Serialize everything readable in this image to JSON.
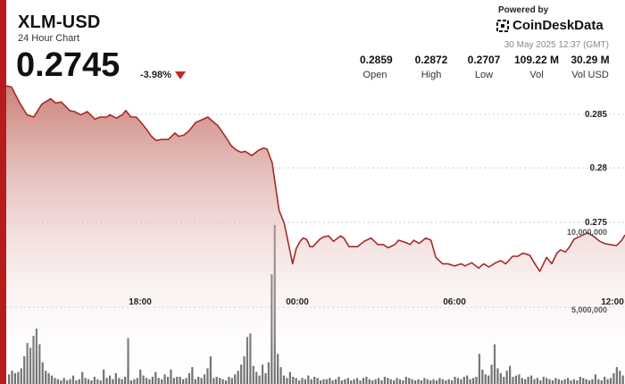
{
  "header": {
    "symbol": "XLM-USD",
    "subtitle": "24 Hour Chart",
    "price": "0.2745",
    "change": "-3.98%"
  },
  "branding": {
    "powered_by": "Powered by",
    "logo_text": "CoinDeskData",
    "timestamp": "30 May 2025 12:37 (GMT)"
  },
  "stats": [
    {
      "value": "0.2859",
      "label": "Open"
    },
    {
      "value": "0.2872",
      "label": "High"
    },
    {
      "value": "0.2707",
      "label": "Low"
    },
    {
      "value": "109.22 M",
      "label": "Vol"
    },
    {
      "value": "30.29 M",
      "label": "Vol USD"
    }
  ],
  "colors": {
    "accent": "#b71c1c",
    "price_line": "#a52a2a",
    "area_top": "#c97a72",
    "volume_bar": "#6f6f6f",
    "down_arrow": "#c62828"
  },
  "chart_data": {
    "type": "area",
    "price_series": {
      "x_hours": [
        0,
        0.16,
        0.42,
        0.64,
        0.85,
        1.1,
        1.37,
        1.53,
        1.7,
        1.96,
        2.11,
        2.3,
        2.5,
        2.74,
        2.9,
        3.1,
        3.2,
        3.4,
        3.58,
        3.69,
        3.85,
        4.01,
        4.21,
        4.32,
        4.48,
        4.63,
        4.79,
        5.0,
        5.21,
        5.32,
        5.48,
        5.64,
        5.85,
        6.01,
        6.22,
        6.33,
        6.53,
        6.74,
        6.95,
        7.11,
        7.26,
        7.37,
        7.58,
        7.79,
        7.95,
        8.05,
        8.21,
        8.42,
        8.58,
        8.84,
        8.95,
        9.05,
        9.16,
        9.26,
        9.32,
        9.37,
        9.47,
        9.68,
        9.79,
        9.95,
        10.1,
        10.32,
        10.42,
        10.58,
        10.84,
        11.05,
        11.26,
        11.47,
        11.63,
        11.79,
        12.0,
        12.11,
        12.32,
        12.47,
        12.58,
        12.74,
        12.95,
        13.11,
        13.26,
        13.47,
        13.63,
        13.84,
        14.05,
        14.16,
        14.37,
        14.58,
        14.74,
        14.9,
        15.11,
        15.26,
        15.42,
        15.63,
        15.79,
        15.95,
        16.16,
        16.32,
        16.47,
        16.68,
        16.84,
        17.0,
        17.11,
        17.26,
        17.37,
        17.53,
        17.74,
        17.95,
        18.16,
        18.32,
        18.47,
        18.63,
        18.84,
        19.0,
        19.1
      ],
      "values": [
        0.2884,
        0.2883,
        0.2868,
        0.2857,
        0.2855,
        0.2867,
        0.2872,
        0.2868,
        0.2869,
        0.2861,
        0.286,
        0.2857,
        0.286,
        0.2853,
        0.2855,
        0.2855,
        0.2857,
        0.2854,
        0.2857,
        0.2861,
        0.2855,
        0.2855,
        0.2848,
        0.2844,
        0.2837,
        0.2833,
        0.2834,
        0.2834,
        0.284,
        0.2837,
        0.2838,
        0.2842,
        0.285,
        0.2852,
        0.2855,
        0.2852,
        0.2847,
        0.2838,
        0.2828,
        0.2824,
        0.2822,
        0.2823,
        0.2819,
        0.2824,
        0.2826,
        0.2825,
        0.2812,
        0.2768,
        0.2756,
        0.2718,
        0.2732,
        0.2738,
        0.2742,
        0.2741,
        0.2738,
        0.2734,
        0.2734,
        0.2741,
        0.2743,
        0.2744,
        0.2739,
        0.2744,
        0.2742,
        0.2734,
        0.2734,
        0.2739,
        0.2742,
        0.2736,
        0.2736,
        0.2733,
        0.2736,
        0.274,
        0.2738,
        0.2736,
        0.274,
        0.2737,
        0.2742,
        0.274,
        0.2724,
        0.2718,
        0.2718,
        0.2716,
        0.2718,
        0.2716,
        0.2719,
        0.2714,
        0.2718,
        0.2715,
        0.2719,
        0.2721,
        0.2718,
        0.2725,
        0.2725,
        0.2728,
        0.2726,
        0.2718,
        0.2711,
        0.2724,
        0.2718,
        0.2728,
        0.2731,
        0.2729,
        0.2733,
        0.2741,
        0.2744,
        0.2747,
        0.2743,
        0.2739,
        0.2737,
        0.2736,
        0.2735,
        0.274,
        0.2745
      ]
    },
    "x_ticks": [
      "18:00",
      "00:00",
      "06:00",
      "12:00"
    ],
    "y_ticks": [
      "0.285",
      "0.28",
      "0.275"
    ],
    "volume_ticks": [
      "10,000,000",
      "5,000,000"
    ],
    "volume_series": [
      800000,
      1100000,
      900000,
      1000000,
      1300000,
      2300000,
      3400000,
      3000000,
      4000000,
      4600000,
      3300000,
      1800000,
      1100000,
      900000,
      700000,
      500000,
      400000,
      300000,
      500000,
      300000,
      400000,
      700000,
      300000,
      400000,
      1000000,
      500000,
      400000,
      300000,
      600000,
      400000,
      300000,
      1200000,
      500000,
      700000,
      400000,
      900000,
      500000,
      400000,
      600000,
      3800000,
      300000,
      400000,
      500000,
      1200000,
      700000,
      500000,
      400000,
      600000,
      1000000,
      500000,
      400000,
      800000,
      600000,
      1200000,
      500000,
      600000,
      600000,
      400000,
      500000,
      900000,
      1400000,
      400000,
      600000,
      500000,
      800000,
      1300000,
      2300000,
      500000,
      600000,
      500000,
      400000,
      300000,
      600000,
      500000,
      800000,
      1100000,
      1600000,
      2300000,
      3900000,
      4200000,
      1500000,
      1000000,
      700000,
      1600000,
      900000,
      1800000,
      9100000,
      13200000,
      2500000,
      1400000,
      700000,
      500000,
      1000000,
      600000,
      500000,
      300000,
      500000,
      400000,
      700000,
      400000,
      600000,
      500000,
      300000,
      400000,
      400000,
      500000,
      300000,
      400000,
      600000,
      300000,
      400000,
      500000,
      300000,
      400000,
      500000,
      300000,
      500000,
      600000,
      400000,
      300000,
      400000,
      500000,
      300000,
      600000,
      500000,
      400000,
      300000,
      500000,
      400000,
      300000,
      600000,
      500000,
      400000,
      300000,
      400000,
      300000,
      500000,
      400000,
      300000,
      400000,
      300000,
      500000,
      400000,
      300000,
      400000,
      300000,
      600000,
      500000,
      400000,
      600000,
      700000,
      400000,
      500000,
      600000,
      2500000,
      1200000,
      800000,
      700000,
      1600000,
      3300000,
      1300000,
      900000,
      600000,
      1100000,
      1500000,
      600000,
      700000,
      800000,
      500000,
      400000,
      600000,
      700000,
      400000,
      500000,
      300000,
      600000,
      500000,
      400000,
      300000,
      500000,
      400000,
      300000,
      400000,
      500000,
      300000,
      400000,
      300000,
      600000,
      500000,
      400000,
      300000,
      400000,
      800000,
      400000,
      300000,
      600000,
      400000,
      500000,
      900000,
      1400000,
      1100000,
      700000
    ],
    "ylim": [
      0.2705,
      0.2895
    ],
    "volume_scale_max": 13700000,
    "grid": true
  }
}
